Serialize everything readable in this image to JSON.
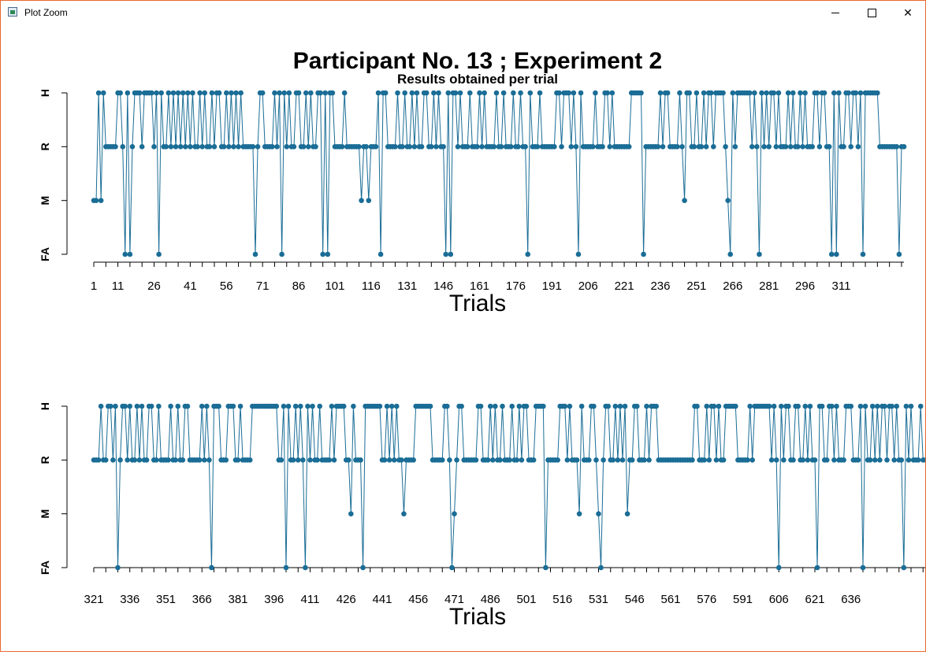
{
  "window": {
    "title": "Plot Zoom",
    "icons": {
      "app": "app-icon",
      "minimize": "minimize-icon",
      "maximize": "maximize-icon",
      "close": "close-icon"
    },
    "close_glyph": "✕"
  },
  "colors": {
    "series": "#1a6d96",
    "frame": "#e8692f",
    "text": "#000000"
  },
  "chart_data": [
    {
      "type": "line",
      "title": "Participant No. 13 ; Experiment 2",
      "subtitle": "Results obtained per trial",
      "xlabel": "Trials",
      "ylabel": "",
      "y_categories": [
        "FA",
        "M",
        "R",
        "H"
      ],
      "x_start": 1,
      "xlim": [
        1,
        320
      ],
      "x_tick_labels": [
        1,
        11,
        26,
        41,
        56,
        71,
        86,
        101,
        116,
        131,
        146,
        161,
        176,
        191,
        206,
        221,
        236,
        251,
        266,
        281,
        296,
        311
      ],
      "values": "MMHMHRRRRRHHRFHFRHHHRHHHHRHFHRRHRHRHRHRHRHRRHRHRRHRHHRRHRHRHRHRRRRRFRHHRRRRHRHFHRHRRHHRRHRHRRHHFHFHHRRRRHRRRRRRMRRMRRRHFHHRRRRHRRHRRHRHRRHHRRHRHRRFHFHHRHRRRHRRRHRHRRRRHRRHRRRHRRHRRFHRRRHRRRRRRHHRHHHRHRFHRRRRRHRRRHHRHRRRRRRRHHHHHFRRRRRRHRHHRRRRHRMHHRRHRRHRHHRHHHHRMFHRHHHHHHRHRFHRHRHHRHRRRHRHRRHRHRRRHHRHHRRFHFHRRHHRHHRHFHHHHHHRRRRRRRRFRR"
    },
    {
      "type": "line",
      "title": "",
      "xlabel": "Trials",
      "ylabel": "",
      "y_categories": [
        "FA",
        "M",
        "R",
        "H"
      ],
      "x_start": 321,
      "xlim": [
        321,
        641
      ],
      "x_tick_labels": [
        321,
        336,
        351,
        366,
        381,
        396,
        411,
        426,
        441,
        456,
        471,
        486,
        501,
        516,
        531,
        546,
        561,
        576,
        591,
        606,
        621,
        636
      ],
      "values": "RRRHRRHHRHFRHHRHRRHRHRRHHRRHRRRRHRRHRRHHRRRRRHRHRFHHHRRRHHHRRHRRRRHHHHHHHHHHHRRHFHRRHRHRFHRHRRHRRRRHRHHHHRRMHRRRFHHHHHHHRRHRHRHRRMRRRRHHHHHHHRRRRRHHRFMRHHRRRRRRHHRRRHRHRRHRRRHRRHRHHRRRHHHHFRRRRRHHHRHRRRMHRRRHHRMFRHHRRHRHRHMRRHHRRRHRHHHRRRRRRRRRRRRRRRHHRRRHRHHRHRRHHHHHRRRRRHRHHHHHHHRHRFHRHHRRHHRRHRHRRFHHRRHHRHRRRHHHRRRHFHRRHRHRHHRHHRHRRFHRHRRRHRRRHMHRRFHRFRRHRRRHRFHRRHRHR"
    }
  ]
}
